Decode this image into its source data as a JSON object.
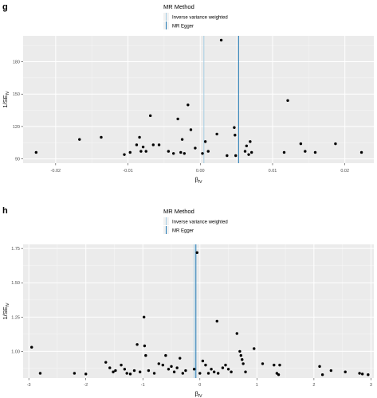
{
  "chart_data": [
    {
      "panel": "g",
      "type": "scatter",
      "legend_title": "MR Method",
      "legend_placement": "top-center",
      "methods": [
        {
          "name": "Inverse variance weighted",
          "beta": 0.0005,
          "color": "#a6cee3"
        },
        {
          "name": "MR Egger",
          "beta": 0.0053,
          "color": "#1f78b4"
        }
      ],
      "xlim": [
        -0.0245,
        0.024
      ],
      "ylim": [
        86,
        204
      ],
      "xticks": [
        -0.02,
        -0.01,
        0.0,
        0.01,
        0.02
      ],
      "xtick_labels": [
        "-0.02",
        "-0.01",
        "0.00",
        "0.01",
        "0.02"
      ],
      "yticks": [
        90,
        120,
        150,
        180
      ],
      "ytick_labels": [
        "90",
        "120",
        "150",
        "180"
      ],
      "xlabel": "β",
      "xlabel_sub": "IV",
      "ylabel": "1/SE",
      "ylabel_sub": "IV",
      "grid": true,
      "points": [
        {
          "x": -0.0227,
          "y": 96
        },
        {
          "x": -0.0167,
          "y": 108
        },
        {
          "x": -0.0137,
          "y": 110
        },
        {
          "x": -0.0105,
          "y": 94
        },
        {
          "x": -0.0097,
          "y": 96
        },
        {
          "x": -0.0088,
          "y": 103
        },
        {
          "x": -0.0084,
          "y": 110
        },
        {
          "x": -0.0082,
          "y": 97
        },
        {
          "x": -0.0079,
          "y": 101
        },
        {
          "x": -0.0075,
          "y": 97
        },
        {
          "x": -0.0069,
          "y": 130
        },
        {
          "x": -0.0065,
          "y": 103
        },
        {
          "x": -0.0057,
          "y": 103
        },
        {
          "x": -0.0044,
          "y": 97
        },
        {
          "x": -0.0037,
          "y": 95
        },
        {
          "x": -0.0031,
          "y": 127
        },
        {
          "x": -0.0027,
          "y": 96
        },
        {
          "x": -0.0025,
          "y": 108
        },
        {
          "x": -0.0022,
          "y": 95
        },
        {
          "x": -0.0017,
          "y": 140
        },
        {
          "x": -0.0013,
          "y": 117
        },
        {
          "x": -0.0007,
          "y": 100
        },
        {
          "x": 0.0003,
          "y": 95
        },
        {
          "x": 0.0007,
          "y": 106
        },
        {
          "x": 0.0011,
          "y": 97
        },
        {
          "x": 0.0023,
          "y": 113
        },
        {
          "x": 0.0029,
          "y": 200
        },
        {
          "x": 0.0037,
          "y": 93
        },
        {
          "x": 0.0047,
          "y": 119
        },
        {
          "x": 0.0048,
          "y": 112
        },
        {
          "x": 0.0049,
          "y": 93
        },
        {
          "x": 0.0062,
          "y": 97
        },
        {
          "x": 0.0064,
          "y": 102
        },
        {
          "x": 0.0067,
          "y": 94
        },
        {
          "x": 0.0069,
          "y": 106
        },
        {
          "x": 0.0071,
          "y": 96
        },
        {
          "x": 0.0116,
          "y": 96
        },
        {
          "x": 0.0121,
          "y": 144
        },
        {
          "x": 0.0139,
          "y": 104
        },
        {
          "x": 0.0145,
          "y": 97
        },
        {
          "x": 0.0159,
          "y": 96
        },
        {
          "x": 0.0187,
          "y": 104
        },
        {
          "x": 0.0223,
          "y": 96
        }
      ]
    },
    {
      "panel": "h",
      "type": "scatter",
      "legend_title": "MR Method",
      "legend_placement": "top-center",
      "methods": [
        {
          "name": "Inverse variance weighted",
          "beta": -0.1,
          "color": "#a6cee3"
        },
        {
          "name": "MR Egger",
          "beta": -0.07,
          "color": "#1f78b4"
        }
      ],
      "xlim": [
        -3.1,
        3.05
      ],
      "ylim": [
        0.805,
        1.78
      ],
      "xticks": [
        -3,
        -2,
        -1,
        0,
        1,
        2,
        3
      ],
      "xtick_labels": [
        "-3",
        "-2",
        "-1",
        "0",
        "1",
        "2",
        "3"
      ],
      "yticks": [
        1.0,
        1.25,
        1.5,
        1.75
      ],
      "ytick_labels": [
        "1.00",
        "1.25",
        "1.50",
        "1.75"
      ],
      "xlabel": "β",
      "xlabel_sub": "IV",
      "ylabel": "1/SE",
      "ylabel_sub": "IV",
      "grid": true,
      "points": [
        {
          "x": -2.95,
          "y": 1.03
        },
        {
          "x": -2.8,
          "y": 0.84
        },
        {
          "x": -2.2,
          "y": 0.84
        },
        {
          "x": -2.0,
          "y": 0.835
        },
        {
          "x": -1.65,
          "y": 0.92
        },
        {
          "x": -1.58,
          "y": 0.88
        },
        {
          "x": -1.52,
          "y": 0.85
        },
        {
          "x": -1.48,
          "y": 0.86
        },
        {
          "x": -1.38,
          "y": 0.9
        },
        {
          "x": -1.32,
          "y": 0.87
        },
        {
          "x": -1.28,
          "y": 0.84
        },
        {
          "x": -1.22,
          "y": 0.835
        },
        {
          "x": -1.15,
          "y": 0.86
        },
        {
          "x": -1.1,
          "y": 1.05
        },
        {
          "x": -1.05,
          "y": 0.85
        },
        {
          "x": -0.98,
          "y": 1.25
        },
        {
          "x": -0.97,
          "y": 1.04
        },
        {
          "x": -0.95,
          "y": 0.97
        },
        {
          "x": -0.9,
          "y": 0.86
        },
        {
          "x": -0.8,
          "y": 0.84
        },
        {
          "x": -0.72,
          "y": 0.91
        },
        {
          "x": -0.65,
          "y": 0.9
        },
        {
          "x": -0.6,
          "y": 0.97
        },
        {
          "x": -0.55,
          "y": 0.87
        },
        {
          "x": -0.5,
          "y": 0.89
        },
        {
          "x": -0.45,
          "y": 0.85
        },
        {
          "x": -0.4,
          "y": 0.88
        },
        {
          "x": -0.35,
          "y": 0.95
        },
        {
          "x": -0.3,
          "y": 0.84
        },
        {
          "x": -0.25,
          "y": 0.86
        },
        {
          "x": -0.1,
          "y": 0.87
        },
        {
          "x": -0.05,
          "y": 1.72
        },
        {
          "x": 0.0,
          "y": 0.84
        },
        {
          "x": 0.05,
          "y": 0.93
        },
        {
          "x": 0.1,
          "y": 0.9
        },
        {
          "x": 0.15,
          "y": 0.84
        },
        {
          "x": 0.2,
          "y": 0.87
        },
        {
          "x": 0.25,
          "y": 0.85
        },
        {
          "x": 0.3,
          "y": 1.22
        },
        {
          "x": 0.32,
          "y": 0.84
        },
        {
          "x": 0.4,
          "y": 0.88
        },
        {
          "x": 0.45,
          "y": 0.9
        },
        {
          "x": 0.5,
          "y": 0.87
        },
        {
          "x": 0.55,
          "y": 0.85
        },
        {
          "x": 0.65,
          "y": 1.13
        },
        {
          "x": 0.7,
          "y": 1.0
        },
        {
          "x": 0.72,
          "y": 0.97
        },
        {
          "x": 0.74,
          "y": 0.94
        },
        {
          "x": 0.76,
          "y": 0.91
        },
        {
          "x": 0.8,
          "y": 0.85
        },
        {
          "x": 0.95,
          "y": 1.02
        },
        {
          "x": 1.1,
          "y": 0.91
        },
        {
          "x": 1.3,
          "y": 0.9
        },
        {
          "x": 1.35,
          "y": 0.84
        },
        {
          "x": 1.38,
          "y": 0.83
        },
        {
          "x": 1.4,
          "y": 0.9
        },
        {
          "x": 2.1,
          "y": 0.89
        },
        {
          "x": 2.15,
          "y": 0.83
        },
        {
          "x": 2.3,
          "y": 0.86
        },
        {
          "x": 2.55,
          "y": 0.85
        },
        {
          "x": 2.8,
          "y": 0.84
        },
        {
          "x": 2.85,
          "y": 0.835
        },
        {
          "x": 2.95,
          "y": 0.83
        }
      ]
    }
  ]
}
